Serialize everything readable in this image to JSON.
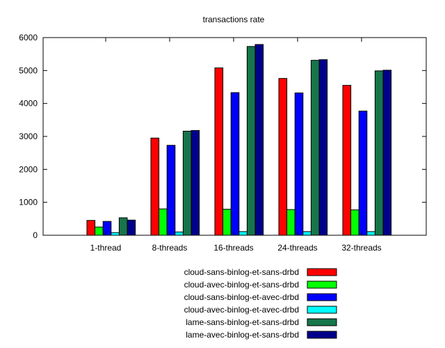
{
  "chart_data": {
    "type": "bar",
    "title": "transactions rate",
    "xlabel": "",
    "ylabel": "",
    "ylim": [
      0,
      6000
    ],
    "yticks": [
      0,
      1000,
      2000,
      3000,
      4000,
      5000,
      6000
    ],
    "grid": false,
    "legend_position": "bottom",
    "categories": [
      "1-thread",
      "8-threads",
      "16-threads",
      "24-threads",
      "32-threads"
    ],
    "series": [
      {
        "name": "cloud-sans-binlog-et-sans-drbd",
        "color": "#ff0000",
        "values": [
          450,
          2950,
          5080,
          4760,
          4550
        ]
      },
      {
        "name": "cloud-avec-binlog-et-sans-drbd",
        "color": "#00ff00",
        "values": [
          250,
          800,
          790,
          780,
          770
        ]
      },
      {
        "name": "cloud-sans-binlog-et-avec-drbd",
        "color": "#0000ff",
        "values": [
          420,
          2730,
          4330,
          4320,
          3770
        ]
      },
      {
        "name": "cloud-avec-binlog-et-avec-drbd",
        "color": "#00ffff",
        "values": [
          80,
          100,
          110,
          110,
          110
        ]
      },
      {
        "name": "lame-sans-binlog-et-sans-drbd",
        "color": "#16754a",
        "values": [
          530,
          3160,
          5730,
          5310,
          4990
        ]
      },
      {
        "name": "lame-avec-binlog-et-sans-drbd",
        "color": "#00008b",
        "values": [
          460,
          3180,
          5790,
          5330,
          5010
        ]
      }
    ]
  }
}
